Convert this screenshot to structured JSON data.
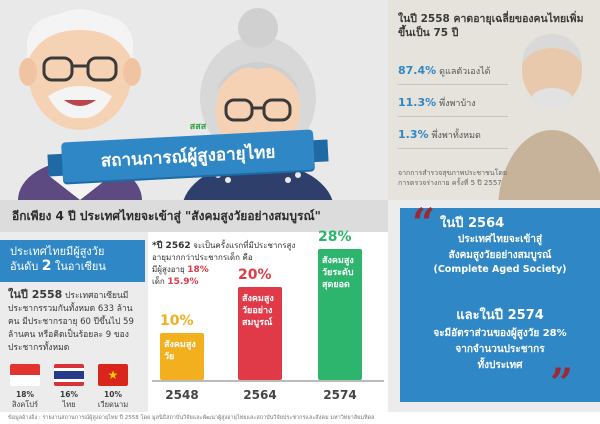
{
  "hero": {
    "title": "สถานการณ์ผู้สูงอายุไทย",
    "logo_text": "สสส"
  },
  "top_right": {
    "heading": "ในปี 2558 คาดอายุเฉลี่ยของคนไทยเพิ่มขึ้นเป็น 75 ปี",
    "stats": [
      {
        "pct": "87.4%",
        "label": "ดูแลตัวเองได้"
      },
      {
        "pct": "11.3%",
        "label": "พึ่งพาบ้าง"
      },
      {
        "pct": "1.3%",
        "label": "พึ่งพาทั้งหมด"
      }
    ],
    "source": "จากการสำรวจสุขภาพประชาชนโดยการตรวจร่างกาย ครั้งที่ 5 ปี 2557"
  },
  "headline": "อีกเพียง 4 ปี ประเทศไทยจะเข้าสู่ \"สังคมสูงวัยอย่างสมบูรณ์\"",
  "asean": {
    "line1": "ประเทศไทยมีผู้สูงวัย",
    "line2_prefix": "อันดับ",
    "rank": "2",
    "line2_suffix": "ในอาเซียน"
  },
  "population": {
    "year_label": "ในปี 2558",
    "text": "ประเทศอาเซียนมีประชากรรวมกันทั้งหมด 633 ล้านคน มีประชากรอายุ 60 ปีขึ้นไป 59 ล้านคน หรือคิดเป็นร้อยละ 9 ของประชากรทั้งหมด"
  },
  "flags": [
    {
      "pct": "18%",
      "country": "สิงคโปร์",
      "colors": [
        "#e2342f",
        "#ffffff"
      ]
    },
    {
      "pct": "16%",
      "country": "ไทย",
      "colors": [
        "#d8323a",
        "#ffffff",
        "#253a8a"
      ]
    },
    {
      "pct": "10%",
      "country": "เวียดนาม",
      "colors": [
        "#da251d",
        "#ffcd00"
      ]
    }
  ],
  "chart_note": {
    "prefix": "*ปี 2562",
    "text": "จะเป็นครั้งแรกที่มีประชากรสูงอายุมากกว่าประชากรเด็ก คือ",
    "elderly_label": "มีผู้สูงอายุ",
    "elderly_value": "18%",
    "child_label": "เด็ก",
    "child_value": "15.9%"
  },
  "chart_data": {
    "type": "bar",
    "categories": [
      "2548",
      "2564",
      "2574"
    ],
    "values": [
      10,
      20,
      28
    ],
    "value_labels": [
      "10%",
      "20%",
      "28%"
    ],
    "bar_labels": [
      "สังคมสูงวัย",
      "สังคมสูงวัยอย่างสมบูรณ์",
      "สังคมสูงวัยระดับสุดยอด"
    ],
    "colors": [
      "#f2b01e",
      "#e03a49",
      "#2db56e"
    ],
    "ylim": [
      0,
      30
    ]
  },
  "aged_panel": {
    "line1": "ในปี 2564",
    "line2": "ประเทศไทยจะเข้าสู่",
    "line3": "สังคมสูงวัยอย่างสมบูรณ์",
    "line4": "(Complete Aged Society)",
    "line5": "และในปี 2574",
    "line6": "จะมีอัตราส่วนของผู้สูงวัย 28%",
    "line7": "จากจำนวนประชากร",
    "line8": "ทั้งประเทศ"
  },
  "footer": "ข้อมูลอ้างอิง : รายงานสถานการณ์ผู้สูงอายุไทย ปี 2558 โดย มูลนิธิสถาบันวิจัยและพัฒนาผู้สูงอายุไทยและสถาบันวิจัยประชากรและสังคม มหาวิทยาลัยมหิดล"
}
